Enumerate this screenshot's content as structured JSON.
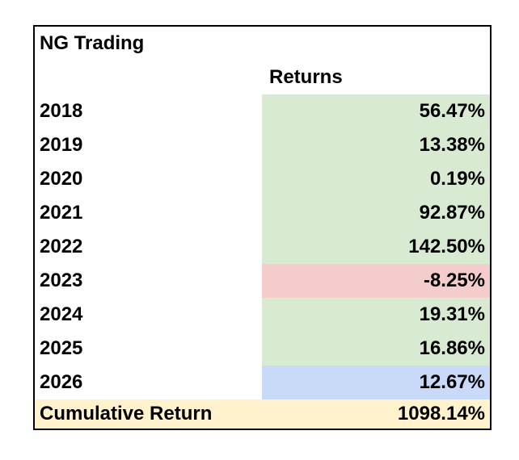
{
  "table": {
    "title": "NG Trading",
    "column_header": "Returns",
    "rows": [
      {
        "year": "2018",
        "return": "56.47%"
      },
      {
        "year": "2019",
        "return": "13.38%"
      },
      {
        "year": "2020",
        "return": "0.19%"
      },
      {
        "year": "2021",
        "return": "92.87%"
      },
      {
        "year": "2022",
        "return": "142.50%"
      },
      {
        "year": "2023",
        "return": "-8.25%"
      },
      {
        "year": "2024",
        "return": "19.31%"
      },
      {
        "year": "2025",
        "return": "16.86%"
      },
      {
        "year": "2026",
        "return": "12.67%"
      }
    ],
    "total": {
      "label": "Cumulative Return",
      "value": "1098.14%"
    }
  },
  "colors": {
    "positive_fill": "#d9ead3",
    "negative_fill": "#f4cccc",
    "current_year_fill": "#c9daf8",
    "total_fill": "#fff2cc"
  }
}
